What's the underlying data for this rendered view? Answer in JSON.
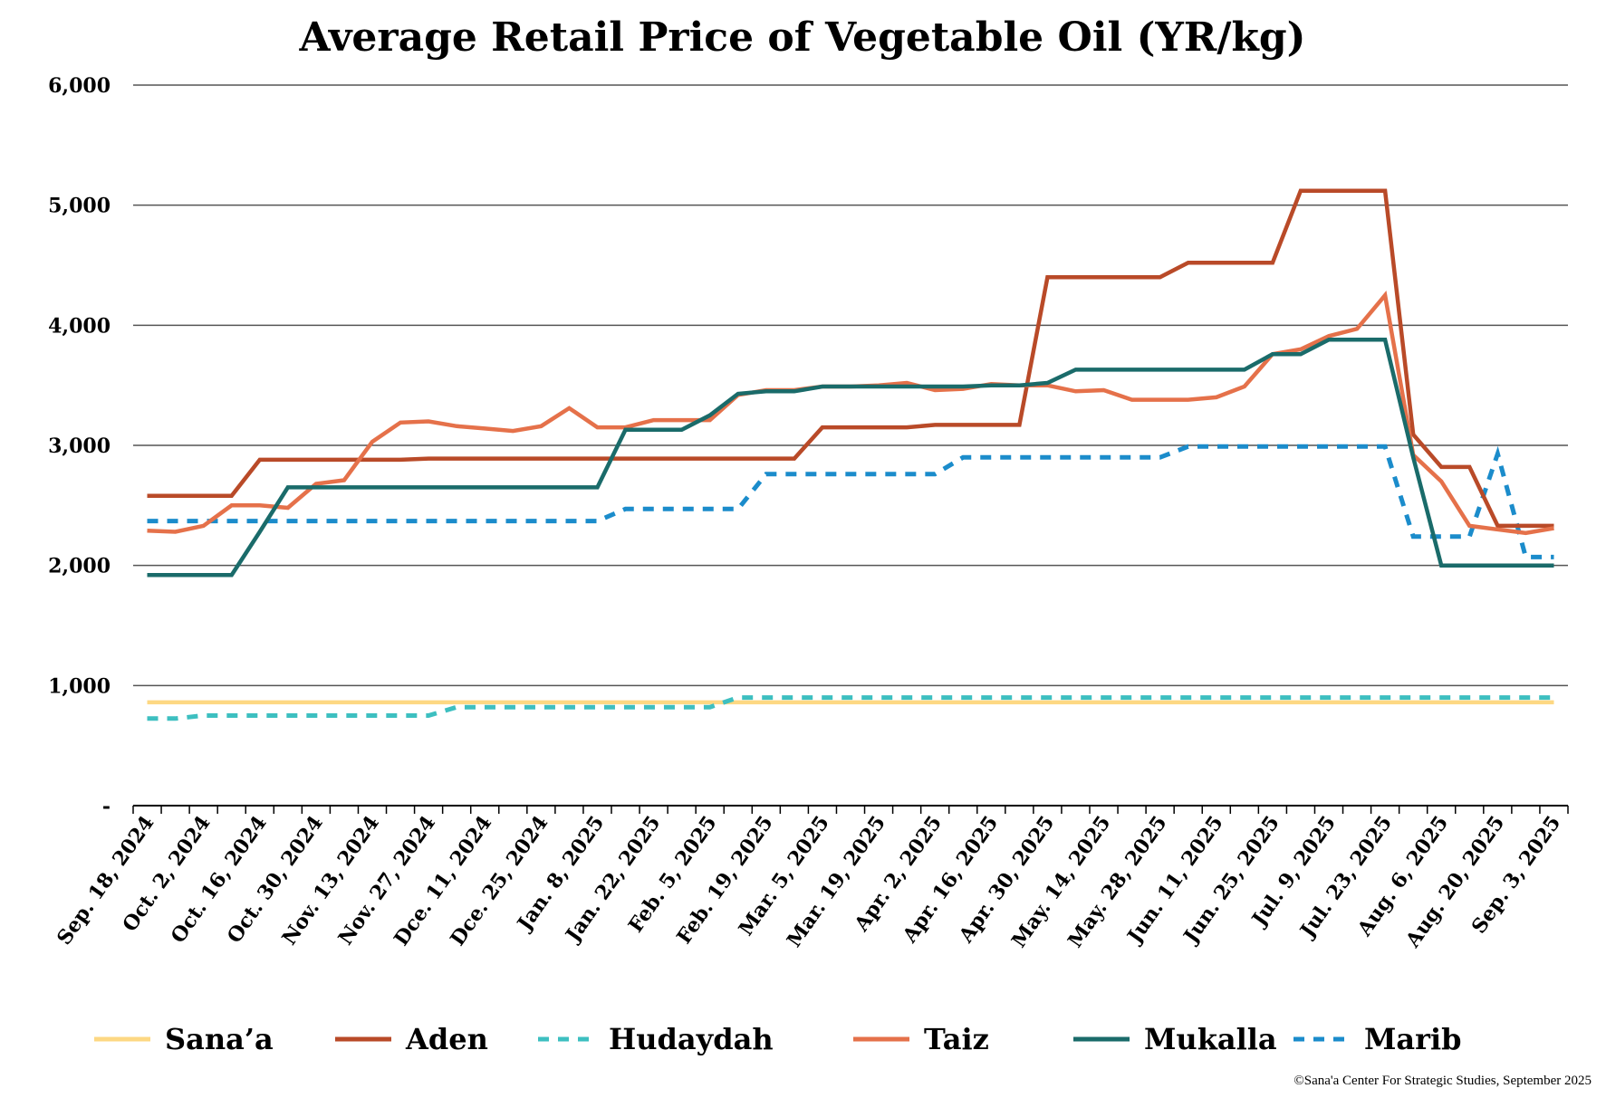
{
  "chart_data": {
    "type": "line",
    "title": "Average Retail Price of Vegetable Oil (YR/kg)",
    "xlabel": "",
    "ylabel": "",
    "ylim": [
      0,
      6000
    ],
    "yticks": [
      0,
      1000,
      2000,
      3000,
      4000,
      5000,
      6000
    ],
    "ytick_labels": [
      "-",
      "1,000",
      "2,000",
      "3,000",
      "4,000",
      "5,000",
      "6,000"
    ],
    "grid": "horizontal",
    "legend_position": "bottom",
    "n_points": 51,
    "x_tick_labels": [
      "Sep. 18, 2024",
      "Oct. 2, 2024",
      "Oct. 16, 2024",
      "Oct. 30, 2024",
      "Nov. 13, 2024",
      "Nov. 27, 2024",
      "Dce. 11, 2024",
      "Dce. 25, 2024",
      "Jan. 8, 2025",
      "Jan. 22, 2025",
      "Feb. 5, 2025",
      "Feb. 19, 2025",
      "Mar. 5, 2025",
      "Mar. 19, 2025",
      "Apr. 2, 2025",
      "Apr. 16, 2025",
      "Apr. 30, 2025",
      "May. 14, 2025",
      "May. 28, 2025",
      "Jun. 11, 2025",
      "Jun. 25, 2025",
      "Jul. 9, 2025",
      "Jul. 23, 2025",
      "Aug. 6, 2025",
      "Aug. 20, 2025",
      "Sep. 3, 2025"
    ],
    "series": [
      {
        "name": "Sana’a",
        "color": "#FDD883",
        "dash": false,
        "values": [
          860,
          860,
          860,
          860,
          860,
          860,
          860,
          860,
          860,
          860,
          860,
          860,
          860,
          860,
          860,
          860,
          860,
          860,
          860,
          860,
          860,
          860,
          860,
          860,
          860,
          860,
          860,
          860,
          860,
          860,
          860,
          860,
          860,
          860,
          860,
          860,
          860,
          860,
          860,
          860,
          860,
          860,
          860,
          860,
          860,
          860,
          860,
          860,
          860,
          860,
          860
        ]
      },
      {
        "name": "Aden",
        "color": "#B94A28",
        "dash": false,
        "values": [
          2580,
          2580,
          2580,
          2580,
          2880,
          2880,
          2880,
          2880,
          2880,
          2880,
          2890,
          2890,
          2890,
          2890,
          2890,
          2890,
          2890,
          2890,
          2890,
          2890,
          2890,
          2890,
          2890,
          2890,
          3150,
          3150,
          3150,
          3150,
          3170,
          3170,
          3170,
          3170,
          4400,
          4400,
          4400,
          4400,
          4400,
          4520,
          4520,
          4520,
          4520,
          5120,
          5120,
          5120,
          5120,
          3090,
          2820,
          2820,
          2330,
          2330,
          2330
        ]
      },
      {
        "name": "Hudaydah",
        "color": "#3DBFC0",
        "dash": true,
        "values": [
          725,
          725,
          750,
          750,
          750,
          750,
          750,
          750,
          750,
          750,
          750,
          820,
          820,
          820,
          820,
          820,
          820,
          820,
          820,
          820,
          820,
          900,
          900,
          900,
          900,
          900,
          900,
          900,
          900,
          900,
          900,
          900,
          900,
          900,
          900,
          900,
          900,
          900,
          900,
          900,
          900,
          900,
          900,
          900,
          900,
          900,
          900,
          900,
          900,
          900,
          900
        ]
      },
      {
        "name": "Taiz",
        "color": "#E5714A",
        "dash": false,
        "values": [
          2290,
          2280,
          2330,
          2500,
          2500,
          2480,
          2680,
          2710,
          3030,
          3190,
          3200,
          3160,
          3140,
          3120,
          3160,
          3310,
          3150,
          3150,
          3210,
          3210,
          3210,
          3420,
          3460,
          3460,
          3490,
          3490,
          3500,
          3520,
          3460,
          3470,
          3510,
          3500,
          3500,
          3450,
          3460,
          3380,
          3380,
          3380,
          3400,
          3490,
          3760,
          3800,
          3910,
          3970,
          4250,
          2920,
          2700,
          2330,
          2300,
          2270,
          2310
        ]
      },
      {
        "name": "Mukalla",
        "color": "#1A6B6A",
        "dash": false,
        "values": [
          1920,
          1920,
          1920,
          1920,
          2280,
          2650,
          2650,
          2650,
          2650,
          2650,
          2650,
          2650,
          2650,
          2650,
          2650,
          2650,
          2650,
          3130,
          3130,
          3130,
          3250,
          3430,
          3450,
          3450,
          3490,
          3490,
          3490,
          3490,
          3490,
          3490,
          3500,
          3500,
          3520,
          3630,
          3630,
          3630,
          3630,
          3630,
          3630,
          3630,
          3760,
          3760,
          3880,
          3880,
          3880,
          2900,
          2000,
          2000,
          2000,
          2000,
          2000
        ]
      },
      {
        "name": "Marib",
        "color": "#1B8CCB",
        "dash": true,
        "values": [
          2370,
          2370,
          2370,
          2370,
          2370,
          2370,
          2370,
          2370,
          2370,
          2370,
          2370,
          2370,
          2370,
          2370,
          2370,
          2370,
          2370,
          2470,
          2470,
          2470,
          2470,
          2470,
          2760,
          2760,
          2760,
          2760,
          2760,
          2760,
          2760,
          2900,
          2900,
          2900,
          2900,
          2900,
          2900,
          2900,
          2900,
          2990,
          2990,
          2990,
          2990,
          2990,
          2990,
          2990,
          2990,
          2240,
          2240,
          2240,
          2930,
          2070,
          2070
        ]
      }
    ]
  },
  "credit": "©Sana'a Center For Strategic Studies, September 2025"
}
